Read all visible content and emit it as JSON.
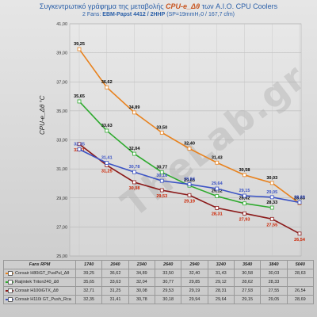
{
  "chart_data": {
    "type": "line",
    "title": "Συγκεντρωτικό γράφημα της μεταβολής",
    "title_em": "CPU-e_Δθ",
    "title_tail": "των A.I.O. CPU Coolers",
    "subtitle_prefix": "2 Fans:",
    "subtitle_fans": "EBM-Papst 4412 / 2HHP",
    "subtitle_spec": "(SP=19mmH₂0 / 167,7 cfm)",
    "ylabel": "CPU-e_Δθ °C",
    "xlabel": "Fans RPM",
    "ylim": [
      25,
      41
    ],
    "yticks": [
      "25,00",
      "27,00",
      "29,00",
      "31,00",
      "33,00",
      "35,00",
      "37,00",
      "39,00",
      "41,00"
    ],
    "categories": [
      "1740",
      "2040",
      "2340",
      "2640",
      "2940",
      "3240",
      "3540",
      "3840",
      "5040"
    ],
    "series": [
      {
        "name": "Corsair H80iGT_PusPul_Δθ",
        "color": "#e8821e",
        "values": [
          39.25,
          36.62,
          34.89,
          33.5,
          32.4,
          31.43,
          30.58,
          30.03,
          28.63
        ],
        "labels": [
          "39,25",
          "36,62",
          "34,89",
          "33,50",
          "32,40",
          "31,43",
          "30,58",
          "30,03",
          "28,63"
        ]
      },
      {
        "name": "Raijintek Triton240_Δθ",
        "color": "#2eaa2e",
        "values": [
          35.65,
          33.63,
          32.04,
          30.77,
          29.85,
          29.12,
          28.62,
          28.33,
          null
        ],
        "labels": [
          "35,65",
          "33,63",
          "32,04",
          "30,77",
          "29,85",
          "29,12",
          "28,62",
          "28,33",
          ""
        ]
      },
      {
        "name": "Corsair H100iGTX_Δθ",
        "color": "#8b1a1a",
        "values": [
          32.71,
          31.25,
          30.08,
          29.53,
          29.19,
          28.31,
          27.93,
          27.55,
          26.54
        ],
        "labels": [
          "32,71",
          "31,25",
          "30,08",
          "29,53",
          "29,19",
          "28,31",
          "27,93",
          "27,55",
          "26,54"
        ]
      },
      {
        "name": "Corsair H110i GT_Push_Rca",
        "color": "#3a52c4",
        "values": [
          32.35,
          31.41,
          30.78,
          30.18,
          29.94,
          29.64,
          29.15,
          29.05,
          28.69
        ],
        "labels": [
          "32,35",
          "31,41",
          "30,78",
          "30,18",
          "29,94",
          "29,64",
          "29,15",
          "29,05",
          "28,69"
        ]
      }
    ],
    "label_colors": [
      "#000000",
      "#000000",
      "#cc2200",
      "#3a52c4"
    ],
    "table": {
      "header": "Fans RPM",
      "rows": [
        [
          "39,25",
          "36,62",
          "34,89",
          "33,50",
          "32,40",
          "31,43",
          "30,58",
          "30,03",
          "28,63"
        ],
        [
          "35,65",
          "33,63",
          "32,04",
          "30,77",
          "29,85",
          "29,12",
          "28,62",
          "28,33",
          ""
        ],
        [
          "32,71",
          "31,25",
          "30,08",
          "29,53",
          "29,19",
          "28,31",
          "27,93",
          "27,55",
          "26,54"
        ],
        [
          "32,35",
          "31,41",
          "30,78",
          "30,18",
          "29,94",
          "29,64",
          "29,15",
          "29,05",
          "28,69"
        ]
      ]
    },
    "grid": true,
    "legend": "table-bottom"
  },
  "watermark": "TheLab.gr"
}
